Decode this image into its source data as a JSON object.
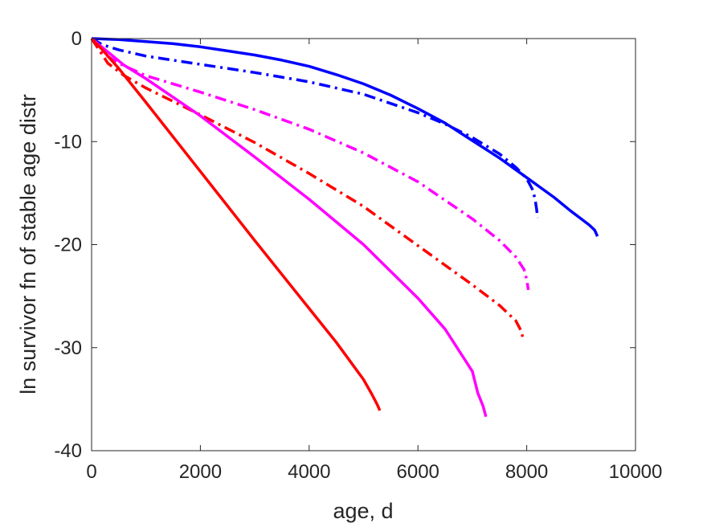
{
  "chart_data": {
    "type": "line",
    "title": "",
    "xlabel": "age, d",
    "ylabel": "ln survivor fn of stable age distr",
    "xlim": [
      0,
      10000
    ],
    "ylim": [
      -40,
      0
    ],
    "xticks": [
      0,
      2000,
      4000,
      6000,
      8000,
      10000
    ],
    "yticks": [
      0,
      -10,
      -20,
      -30,
      -40
    ],
    "xtick_labels": [
      "0",
      "2000",
      "4000",
      "6000",
      "8000",
      "10000"
    ],
    "ytick_labels": [
      "0",
      "-10",
      "-20",
      "-30",
      "-40"
    ],
    "grid": false,
    "legend": "none",
    "series": [
      {
        "color": "#0000ff",
        "linestyle": "solid",
        "points": [
          [
            0,
            0
          ],
          [
            500,
            -0.1
          ],
          [
            1000,
            -0.3
          ],
          [
            1500,
            -0.5
          ],
          [
            2000,
            -0.8
          ],
          [
            2500,
            -1.2
          ],
          [
            3000,
            -1.6
          ],
          [
            3500,
            -2.1
          ],
          [
            4000,
            -2.7
          ],
          [
            4500,
            -3.5
          ],
          [
            5000,
            -4.4
          ],
          [
            5500,
            -5.5
          ],
          [
            6000,
            -6.8
          ],
          [
            6500,
            -8.2
          ],
          [
            7000,
            -9.9
          ],
          [
            7500,
            -11.6
          ],
          [
            8000,
            -13.5
          ],
          [
            8500,
            -15.4
          ],
          [
            8800,
            -16.7
          ],
          [
            9000,
            -17.5
          ],
          [
            9150,
            -18.1
          ],
          [
            9250,
            -18.6
          ],
          [
            9300,
            -19.2
          ]
        ]
      },
      {
        "color": "#0000ff",
        "linestyle": "dashdot",
        "points": [
          [
            0,
            0
          ],
          [
            200,
            -0.6
          ],
          [
            500,
            -1.1
          ],
          [
            1000,
            -1.7
          ],
          [
            2000,
            -2.5
          ],
          [
            3000,
            -3.3
          ],
          [
            4000,
            -4.2
          ],
          [
            5000,
            -5.4
          ],
          [
            6000,
            -7.2
          ],
          [
            6500,
            -8.3
          ],
          [
            7000,
            -9.6
          ],
          [
            7500,
            -11.2
          ],
          [
            7800,
            -12.5
          ],
          [
            8000,
            -13.6
          ],
          [
            8100,
            -14.6
          ],
          [
            8150,
            -15.5
          ],
          [
            8180,
            -16.5
          ],
          [
            8200,
            -17.4
          ]
        ]
      },
      {
        "color": "#ff00ff",
        "linestyle": "dashdot",
        "points": [
          [
            0,
            0
          ],
          [
            200,
            -1.4
          ],
          [
            500,
            -2.4
          ],
          [
            1000,
            -3.6
          ],
          [
            2000,
            -5.2
          ],
          [
            3000,
            -6.9
          ],
          [
            4000,
            -8.8
          ],
          [
            5000,
            -11.1
          ],
          [
            6000,
            -13.9
          ],
          [
            7000,
            -17.5
          ],
          [
            7500,
            -19.6
          ],
          [
            7800,
            -21.2
          ],
          [
            7950,
            -22.4
          ],
          [
            8000,
            -23.4
          ],
          [
            8030,
            -24.4
          ]
        ]
      },
      {
        "color": "#ff0000",
        "linestyle": "dashdot",
        "points": [
          [
            0,
            0
          ],
          [
            300,
            -2.4
          ],
          [
            600,
            -3.6
          ],
          [
            1000,
            -4.8
          ],
          [
            2000,
            -7.4
          ],
          [
            3000,
            -10.1
          ],
          [
            4000,
            -13.1
          ],
          [
            5000,
            -16.3
          ],
          [
            6000,
            -20.1
          ],
          [
            7000,
            -23.9
          ],
          [
            7500,
            -25.9
          ],
          [
            7800,
            -27.4
          ],
          [
            7900,
            -28.4
          ],
          [
            7940,
            -29.3
          ]
        ]
      },
      {
        "color": "#ff00ff",
        "linestyle": "solid",
        "points": [
          [
            0,
            0
          ],
          [
            300,
            -1.3
          ],
          [
            600,
            -2.6
          ],
          [
            1000,
            -3.9
          ],
          [
            2000,
            -7.5
          ],
          [
            3000,
            -11.5
          ],
          [
            4000,
            -15.6
          ],
          [
            5000,
            -20.0
          ],
          [
            6000,
            -25.2
          ],
          [
            6500,
            -28.2
          ],
          [
            7000,
            -32.3
          ],
          [
            7100,
            -34.4
          ],
          [
            7200,
            -35.7
          ],
          [
            7250,
            -36.7
          ]
        ]
      },
      {
        "color": "#ff0000",
        "linestyle": "solid",
        "points": [
          [
            0,
            0
          ],
          [
            200,
            -1.1
          ],
          [
            500,
            -2.9
          ],
          [
            1000,
            -6.2
          ],
          [
            2000,
            -12.9
          ],
          [
            3000,
            -19.6
          ],
          [
            4000,
            -26.2
          ],
          [
            4500,
            -29.5
          ],
          [
            5000,
            -33.1
          ],
          [
            5150,
            -34.5
          ],
          [
            5250,
            -35.5
          ],
          [
            5300,
            -36.1
          ]
        ]
      }
    ]
  }
}
